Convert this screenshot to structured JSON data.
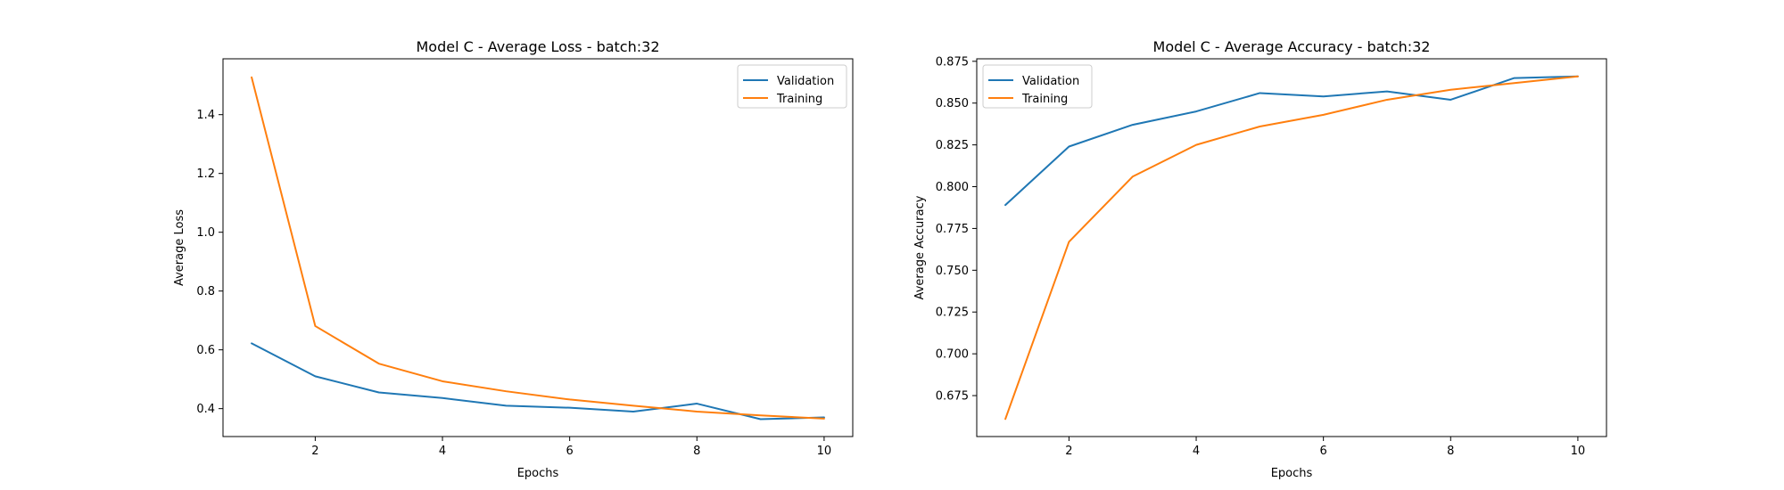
{
  "colors": {
    "validation": "#1f77b4",
    "training": "#ff7f0e",
    "axis": "#000000",
    "legend_border": "#cccccc",
    "background": "#ffffff"
  },
  "chart_data": [
    {
      "type": "line",
      "title": "Model C - Average Loss - batch:32",
      "xlabel": "Epochs",
      "ylabel": "Average Loss",
      "xlim": [
        0.55,
        10.45
      ],
      "ylim": [
        0.305,
        1.59
      ],
      "xticks": [
        2,
        4,
        6,
        8,
        10
      ],
      "yticks": [
        0.4,
        0.6,
        0.8,
        1.0,
        1.2,
        1.4
      ],
      "ytick_labels": [
        "0.4",
        "0.6",
        "0.8",
        "1.0",
        "1.2",
        "1.4"
      ],
      "grid": false,
      "legend_position": "upper right",
      "x": [
        1,
        2,
        3,
        4,
        5,
        6,
        7,
        8,
        9,
        10
      ],
      "series": [
        {
          "name": "Validation",
          "color_key": "validation",
          "values": [
            0.622,
            0.51,
            0.455,
            0.436,
            0.41,
            0.403,
            0.39,
            0.417,
            0.364,
            0.37
          ]
        },
        {
          "name": "Training",
          "color_key": "training",
          "values": [
            1.527,
            0.681,
            0.553,
            0.493,
            0.459,
            0.431,
            0.41,
            0.39,
            0.377,
            0.366
          ]
        }
      ]
    },
    {
      "type": "line",
      "title": "Model C - Average Accuracy - batch:32",
      "xlabel": "Epochs",
      "ylabel": "Average Accuracy",
      "xlim": [
        0.55,
        10.45
      ],
      "ylim": [
        0.6505,
        0.8765
      ],
      "xticks": [
        2,
        4,
        6,
        8,
        10
      ],
      "yticks": [
        0.675,
        0.7,
        0.725,
        0.75,
        0.775,
        0.8,
        0.825,
        0.85,
        0.875
      ],
      "ytick_labels": [
        "0.675",
        "0.700",
        "0.725",
        "0.750",
        "0.775",
        "0.800",
        "0.825",
        "0.850",
        "0.875"
      ],
      "grid": false,
      "legend_position": "upper left",
      "x": [
        1,
        2,
        3,
        4,
        5,
        6,
        7,
        8,
        9,
        10
      ],
      "series": [
        {
          "name": "Validation",
          "color_key": "validation",
          "values": [
            0.789,
            0.824,
            0.837,
            0.845,
            0.856,
            0.854,
            0.857,
            0.852,
            0.865,
            0.866
          ]
        },
        {
          "name": "Training",
          "color_key": "training",
          "values": [
            0.661,
            0.767,
            0.806,
            0.825,
            0.836,
            0.843,
            0.852,
            0.858,
            0.862,
            0.866
          ]
        }
      ]
    }
  ]
}
